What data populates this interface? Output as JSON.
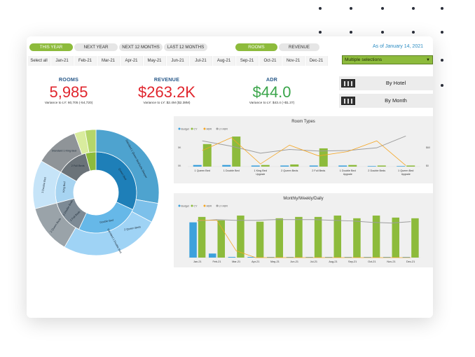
{
  "filters": {
    "period_buttons": [
      "THIS YEAR",
      "NEXT YEAR",
      "NEXT 12 MONTHS",
      "LAST 12 MONTHS"
    ],
    "metric_buttons": [
      "ROOMS",
      "REVENUE"
    ],
    "as_of": "As of January 14, 2021",
    "months": [
      "Select all",
      "Jan-21",
      "Feb-21",
      "Mar-21",
      "Apr-21",
      "May-21",
      "Jun-21",
      "Jul-21",
      "Aug-21",
      "Sep-21",
      "Oct-21",
      "Nov-21",
      "Dec-21"
    ],
    "selection": "Multiple selections"
  },
  "kpis": [
    {
      "title": "ROOMS",
      "value": "5,985",
      "variance": "Variance to LY: 60,705 (-54,720)"
    },
    {
      "title": "REVENUE",
      "value": "$263.2K",
      "variance": "Variance to LY: $2.4M ($2.38M)"
    },
    {
      "title": "ADR",
      "value": "$44.0",
      "variance": "Variance to LY: $43.4 (+$1.37)"
    }
  ],
  "nav": {
    "by_hotel": "By Hotel",
    "by_month": "By Month"
  },
  "sunburst": {
    "labels": [
      "Standard 1 Queen Bed/Sofa Sleeper",
      "Standard 1 Double Bed",
      "2 Queen Beds",
      "1 Double Bed",
      "Standard 1 King Bed",
      "2 Queen Beds",
      "2 Double Beds",
      "2 Full Beds",
      "Queen Bed",
      "Double Bed",
      "King Bed",
      "2 Full Beds"
    ]
  },
  "chart_data": [
    {
      "type": "bar",
      "title": "Room Types",
      "legend": [
        "Budget",
        "CY",
        "ADR",
        "LY ADR"
      ],
      "categories": [
        "1 Queen Bed",
        "1 Double Bed",
        "1 King Bed Upgrade",
        "2 Queen Beds",
        "2 Full Beds",
        "1 Double Bed Upgrade",
        "2 Double Beds",
        "1 Queen Bed Upgrade"
      ],
      "y_ticks": [
        "5K",
        "0K"
      ],
      "y2_ticks": [
        "$60",
        "$0"
      ],
      "series": [
        {
          "name": "Budget",
          "values": [
            0.3,
            0.3,
            0.2,
            0.2,
            0.2,
            0.2,
            0.1,
            0.1
          ]
        },
        {
          "name": "CY",
          "values": [
            4.2,
            5.6,
            0.3,
            0.4,
            3.4,
            0.3,
            0.2,
            0.2
          ]
        },
        {
          "name": "ADR",
          "values": [
            30,
            54,
            5,
            40,
            20,
            28,
            48,
            2
          ]
        },
        {
          "name": "LY ADR",
          "values": [
            48,
            38,
            25,
            32,
            29,
            30,
            35,
            57
          ]
        }
      ]
    },
    {
      "type": "bar",
      "title": "Monthly/Weekly/Daily",
      "legend": [
        "Budget",
        "CY",
        "ADR",
        "LY ADR"
      ],
      "categories": [
        "Jan-21",
        "Feb-21",
        "Mar-21",
        "Apr-21",
        "May-21",
        "Jun-21",
        "Jul-21",
        "Aug-21",
        "Sep-21",
        "Oct-21",
        "Nov-21",
        "Dec-21"
      ],
      "series": [
        {
          "name": "Budget",
          "values": [
            52,
            6,
            1,
            1,
            1,
            1,
            1,
            1,
            1,
            1,
            1,
            1
          ]
        },
        {
          "name": "CY",
          "values": [
            60,
            55,
            62,
            53,
            58,
            60,
            60,
            62,
            58,
            62,
            59,
            58
          ]
        },
        {
          "name": "ADR",
          "values": [
            55,
            55,
            10,
            0,
            0,
            0,
            0,
            0,
            0,
            0,
            0,
            0
          ]
        },
        {
          "name": "LY ADR",
          "values": [
            54,
            56,
            55,
            55,
            56,
            56,
            56,
            55,
            54,
            52,
            51,
            53
          ]
        }
      ]
    }
  ],
  "colors": {
    "accent_green": "#8dbb3c",
    "blue": "#3da1dc",
    "orange": "#f5a623",
    "gray": "#9e9e9e"
  }
}
